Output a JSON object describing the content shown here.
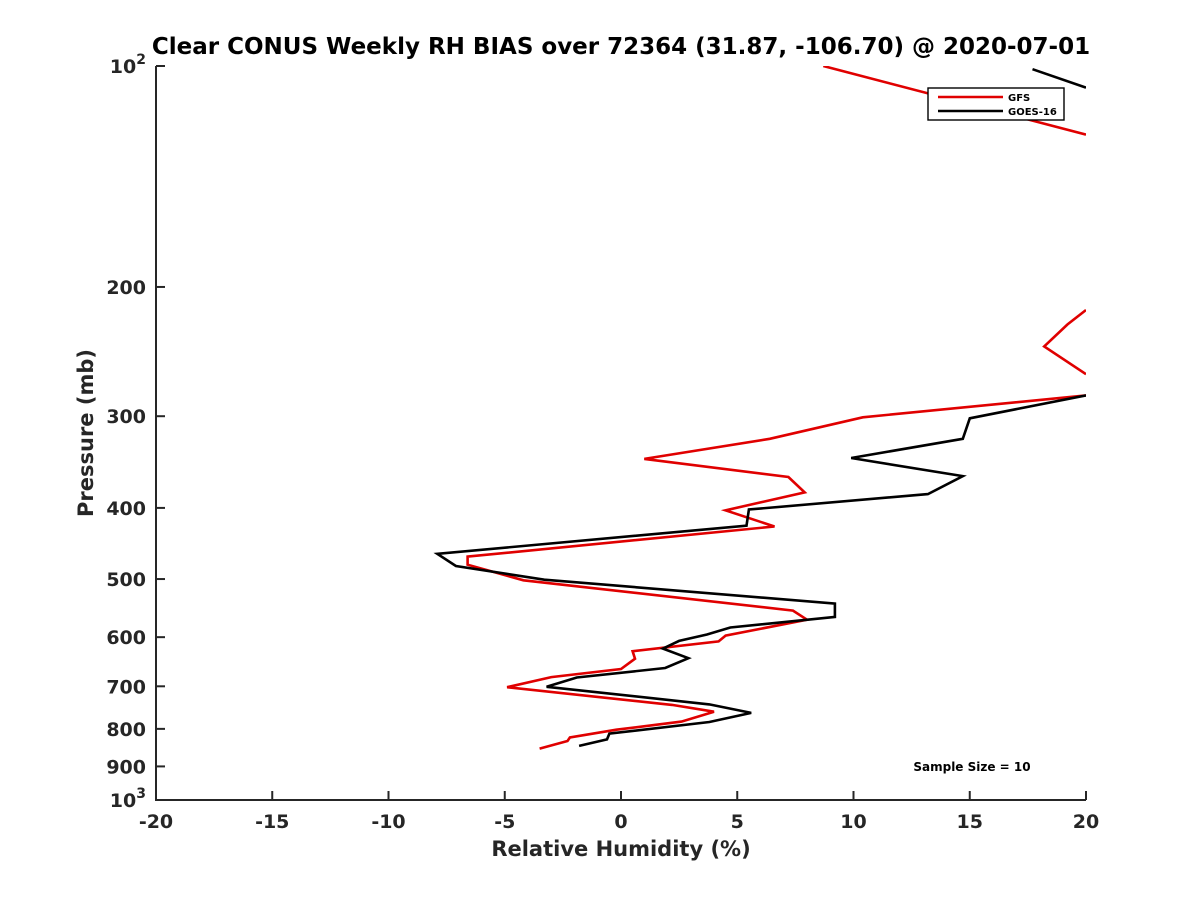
{
  "chart_data": {
    "type": "line",
    "title": "Clear CONUS Weekly RH BIAS over 72364 (31.87, -106.70) @ 2020-07-01",
    "xlabel": "Relative Humidity (%)",
    "ylabel": "Pressure (mb)",
    "xlim": [
      -20,
      20
    ],
    "ylim": [
      100,
      1000
    ],
    "y_scale": "log",
    "y_reversed": true,
    "grid": false,
    "legend_position": "top-right",
    "x_ticks": [
      -20,
      -15,
      -10,
      -5,
      0,
      5,
      10,
      15,
      20
    ],
    "x_tick_labels": [
      "-20",
      "-15",
      "-10",
      "-5",
      "0",
      "5",
      "10",
      "15",
      "20"
    ],
    "y_ticks": [
      100,
      200,
      300,
      400,
      500,
      600,
      700,
      800,
      900,
      1000
    ],
    "y_tick_labels": [
      {
        "base": "10",
        "exp": "2"
      },
      {
        "base": "200",
        "exp": ""
      },
      {
        "base": "300",
        "exp": ""
      },
      {
        "base": "400",
        "exp": ""
      },
      {
        "base": "500",
        "exp": ""
      },
      {
        "base": "600",
        "exp": ""
      },
      {
        "base": "700",
        "exp": ""
      },
      {
        "base": "800",
        "exp": ""
      },
      {
        "base": "900",
        "exp": ""
      },
      {
        "base": "10",
        "exp": "3"
      }
    ],
    "annotation": "Sample Size = 10",
    "series": [
      {
        "name": "GFS",
        "color": "#e00000",
        "segments": [
          [
            [
              8.7,
              100
            ],
            [
              20,
              124
            ]
          ],
          [
            [
              20,
              215
            ],
            [
              19.2,
              225
            ],
            [
              18.2,
              241
            ],
            [
              20,
              263
            ]
          ],
          [
            [
              20,
              281
            ],
            [
              10.4,
              301
            ],
            [
              6.4,
              322
            ],
            [
              1.0,
              343
            ],
            [
              7.2,
              363
            ],
            [
              7.9,
              381
            ],
            [
              4.5,
              403
            ],
            [
              6.6,
              424
            ],
            [
              -6.6,
              466
            ],
            [
              -6.6,
              478
            ],
            [
              -4.2,
              502
            ],
            [
              7.4,
              552
            ],
            [
              8.0,
              568
            ],
            [
              4.5,
              597
            ],
            [
              4.2,
              608
            ],
            [
              0.5,
              627
            ],
            [
              0.6,
              642
            ],
            [
              0.0,
              663
            ],
            [
              -3.0,
              680
            ],
            [
              -4.9,
              702
            ],
            [
              2.2,
              742
            ],
            [
              4.0,
              758
            ],
            [
              2.6,
              782
            ],
            [
              -0.2,
              802
            ],
            [
              -2.2,
              822
            ],
            [
              -2.3,
              831
            ],
            [
              -3.5,
              851
            ]
          ]
        ]
      },
      {
        "name": "GOES-16",
        "color": "#000000",
        "segments": [
          [
            [
              17.7,
              101
            ],
            [
              20,
              107
            ]
          ],
          [
            [
              20,
              281
            ],
            [
              15.0,
              302
            ],
            [
              14.7,
              322
            ],
            [
              9.9,
              342
            ],
            [
              14.7,
              362
            ],
            [
              13.2,
              383
            ],
            [
              5.5,
              402
            ],
            [
              5.4,
              423
            ],
            [
              -7.9,
              462
            ],
            [
              -7.1,
              480
            ],
            [
              -3.3,
              501
            ],
            [
              9.2,
              540
            ],
            [
              9.2,
              563
            ],
            [
              4.7,
              582
            ],
            [
              3.7,
              595
            ],
            [
              2.5,
              607
            ],
            [
              1.8,
              622
            ],
            [
              2.9,
              641
            ],
            [
              1.9,
              661
            ],
            [
              -1.9,
              681
            ],
            [
              -3.2,
              701
            ],
            [
              3.8,
              741
            ],
            [
              5.6,
              761
            ],
            [
              3.8,
              783
            ],
            [
              -0.5,
              812
            ],
            [
              -0.6,
              827
            ],
            [
              -1.8,
              844
            ]
          ]
        ]
      }
    ]
  }
}
